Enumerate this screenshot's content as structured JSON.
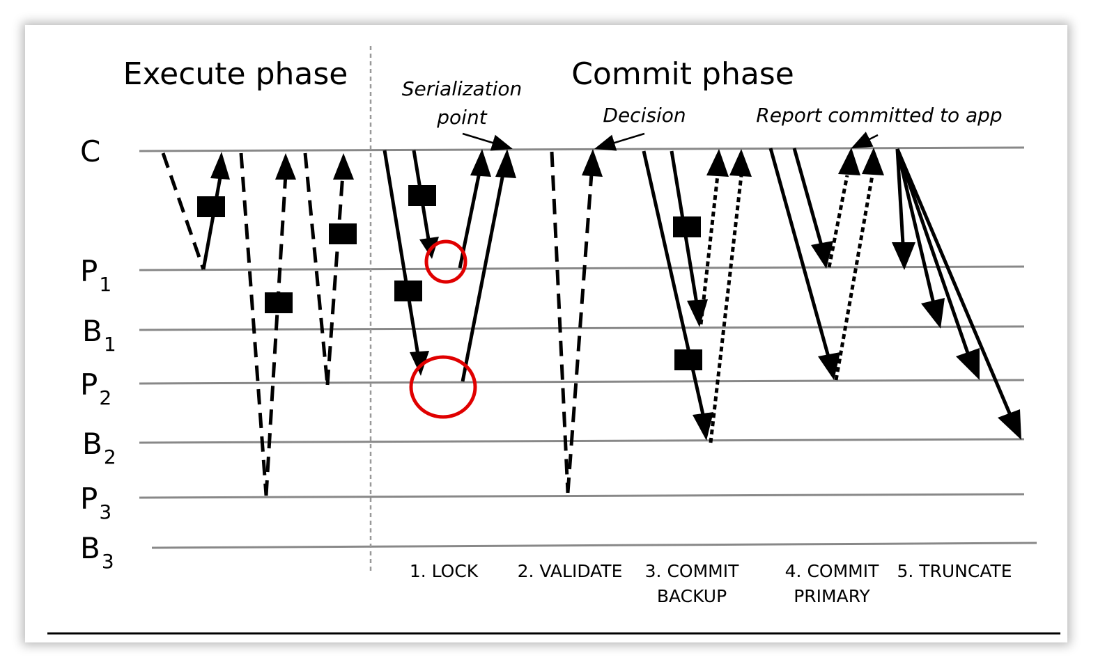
{
  "phases": {
    "execute": "Execute phase",
    "commit": "Commit phase"
  },
  "annotations": {
    "serialization_line1": "Serialization",
    "serialization_line2": "point",
    "decision": "Decision",
    "report": "Report committed to app"
  },
  "rows": [
    {
      "main": "C",
      "sub": ""
    },
    {
      "main": "P",
      "sub": "1"
    },
    {
      "main": "B",
      "sub": "1"
    },
    {
      "main": "P",
      "sub": "2"
    },
    {
      "main": "B",
      "sub": "2"
    },
    {
      "main": "P",
      "sub": "3"
    },
    {
      "main": "B",
      "sub": "3"
    }
  ],
  "steps": [
    {
      "line1": "1. LOCK",
      "line2": ""
    },
    {
      "line1": "2. VALIDATE",
      "line2": ""
    },
    {
      "line1": "3. COMMIT",
      "line2": "BACKUP"
    },
    {
      "line1": "4. COMMIT",
      "line2": "PRIMARY"
    },
    {
      "line1": "5. TRUNCATE",
      "line2": ""
    }
  ],
  "colors": {
    "timeline": "#888888",
    "arrow": "#000000",
    "highlight_circle": "#e00000",
    "divider": "#999999"
  }
}
